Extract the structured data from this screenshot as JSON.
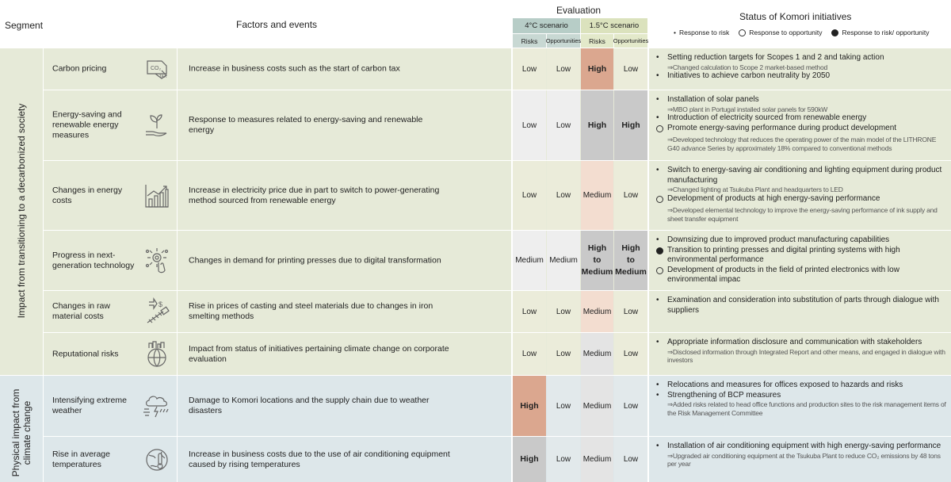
{
  "header": {
    "segment": "Segment",
    "factors": "Factors and events",
    "evaluation": "Evaluation",
    "scenario_4c": "4°C scenario",
    "scenario_15c": "1.5°C scenario",
    "risks": "Risks",
    "opportunities": "Opportunities",
    "status": "Status of Komori initiatives",
    "legend_risk": "Response to risk",
    "legend_opp": "Response to opportunity",
    "legend_both": "Response to risk/ opportunity"
  },
  "segments": {
    "transition": "Impact from transitioning to a decarbonized society",
    "physical_line1": "Physical impact from",
    "physical_line2": "climate change"
  },
  "colors": {
    "green_band": "#e6ead8",
    "blue_band": "#dde7ea",
    "scenario_4c": "#b7cdc7",
    "scenario_15c": "#dbe2bd",
    "high_strong": "#dba78f",
    "high_light": "#f3ddd0",
    "gray_cell": "#c9c9c9",
    "light_cell": "#eeeeee"
  },
  "rows": [
    {
      "factor": "Carbon pricing",
      "icon": "co2-tax-tag-icon",
      "desc": "Increase in business costs such as the start of carbon tax",
      "r4": "Low",
      "o4": "Low",
      "r15": "High",
      "o15": "Low",
      "status": [
        {
          "type": "dot",
          "text": "Setting reduction targets for Scopes 1 and 2 and taking action"
        },
        {
          "type": "sub",
          "text": "⇒Changed calculation to Scope 2 market-based method"
        },
        {
          "type": "dot",
          "text": "Initiatives to achieve carbon neutrality by 2050"
        }
      ]
    },
    {
      "factor": "Energy-saving and renewable energy measures",
      "icon": "plant-in-hand-icon",
      "desc": "Response to measures related to energy-saving and renewable energy",
      "r4": "Low",
      "o4": "Low",
      "r15": "High",
      "o15": "High",
      "status": [
        {
          "type": "dot",
          "text": "Installation of solar panels"
        },
        {
          "type": "sub",
          "text": "⇒MBO plant in Portugal installed solar panels for 590kW"
        },
        {
          "type": "dot",
          "text": "Introduction of electricity sourced from renewable energy"
        },
        {
          "type": "open",
          "text": "Promote energy-saving performance during product development"
        },
        {
          "type": "sub",
          "text": "⇒Developed technology that reduces the operating power of the main model of the LITHRONE G40 advance Series by approximately 18% compared to conventional methods"
        }
      ]
    },
    {
      "factor": "Changes in energy costs",
      "icon": "rising-bar-chart-icon",
      "desc": "Increase in electricity price due in part to switch to power-generating method sourced from renewable energy",
      "r4": "Low",
      "o4": "Low",
      "r15": "Medium",
      "o15": "Low",
      "status": [
        {
          "type": "dot",
          "text": "Switch to energy-saving air conditioning and lighting equipment during product manufacturing"
        },
        {
          "type": "sub",
          "text": "⇒Changed lighting at Tsukuba Plant and headquarters to LED"
        },
        {
          "type": "open",
          "text": "Development of products at high energy-saving performance"
        },
        {
          "type": "sub",
          "text": "⇒Developed elemental technology to improve the energy-saving performance of ink supply and sheet transfer equipment"
        }
      ]
    },
    {
      "factor": "Progress in next-generation technology",
      "icon": "touch-technology-icon",
      "desc": "Changes in demand for printing presses due to digital transformation",
      "r4": "Medium",
      "o4": "Medium",
      "r15": "High to Medium",
      "o15": "High to Medium",
      "status": [
        {
          "type": "dot",
          "text": "Downsizing due to improved product manufacturing capabilities"
        },
        {
          "type": "fill",
          "text": "Transition to printing presses and digital printing systems with high environmental performance"
        },
        {
          "type": "open",
          "text": "Development of products in the field of printed electronics with low environmental impac"
        }
      ]
    },
    {
      "factor": "Changes in raw material costs",
      "icon": "rising-cost-screw-icon",
      "desc": "Rise in prices of casting and steel materials due to changes in iron smelting methods",
      "r4": "Low",
      "o4": "Low",
      "r15": "Medium",
      "o15": "Low",
      "status": [
        {
          "type": "dot",
          "text": "Examination and consideration into substitution of parts through dialogue with suppliers"
        }
      ]
    },
    {
      "factor": "Reputational risks",
      "icon": "globe-city-icon",
      "desc": "Impact from status of initiatives pertaining climate change on corporate evaluation",
      "r4": "Low",
      "o4": "Low",
      "r15": "Medium",
      "o15": "Low",
      "status": [
        {
          "type": "dot",
          "text": "Appropriate information disclosure and communication with stakeholders"
        },
        {
          "type": "sub",
          "text": "⇒Disclosed information through Integrated Report and other means, and engaged in dialogue with investors"
        }
      ]
    },
    {
      "factor": "Intensifying extreme weather",
      "icon": "storm-cloud-icon",
      "desc": "Damage to Komori locations and the supply chain due to weather disasters",
      "r4": "High",
      "o4": "Low",
      "r15": "Medium",
      "o15": "Low",
      "status": [
        {
          "type": "dot",
          "text": "Relocations and measures for offices exposed to hazards and risks"
        },
        {
          "type": "dot",
          "text": "Strengthening of BCP measures"
        },
        {
          "type": "sub",
          "text": "⇒Added risks related to head office functions and production sites to the risk management items of the Risk Management Committee"
        }
      ]
    },
    {
      "factor": "Rise in average temperatures",
      "icon": "thermometer-globe-icon",
      "desc": "Increase in business costs due to the use of air conditioning equipment caused by rising temperatures",
      "r4": "High",
      "o4": "Low",
      "r15": "Medium",
      "o15": "Low",
      "status": [
        {
          "type": "dot",
          "text": "Installation of air conditioning equipment with high energy-saving performance"
        },
        {
          "type": "sub",
          "text": "⇒Upgraded air conditioning equipment at the Tsukuba Plant to reduce CO₂ emissions by 48 tons per year"
        }
      ]
    }
  ]
}
